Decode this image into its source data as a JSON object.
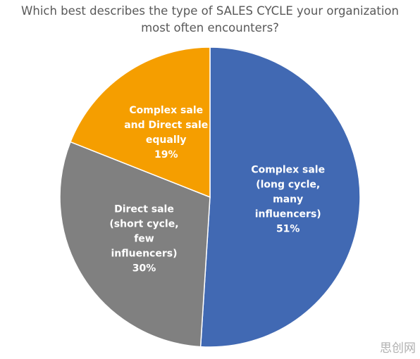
{
  "chart_data": {
    "type": "pie",
    "title": "Which best describes the type of SALES CYCLE your organization most often encounters?",
    "categories": [
      [
        "Complex sale",
        "(long cycle,",
        "many",
        "influencers)"
      ],
      [
        "Direct sale",
        "(short cycle,",
        "few",
        "influencers)"
      ],
      [
        "Complex sale",
        "and Direct sale",
        "equally"
      ]
    ],
    "values": [
      51,
      30,
      19
    ],
    "value_labels": [
      "51%",
      "30%",
      "19%"
    ],
    "colors": [
      "#4169b3",
      "#808080",
      "#f59e00"
    ]
  },
  "watermark": "思创网"
}
